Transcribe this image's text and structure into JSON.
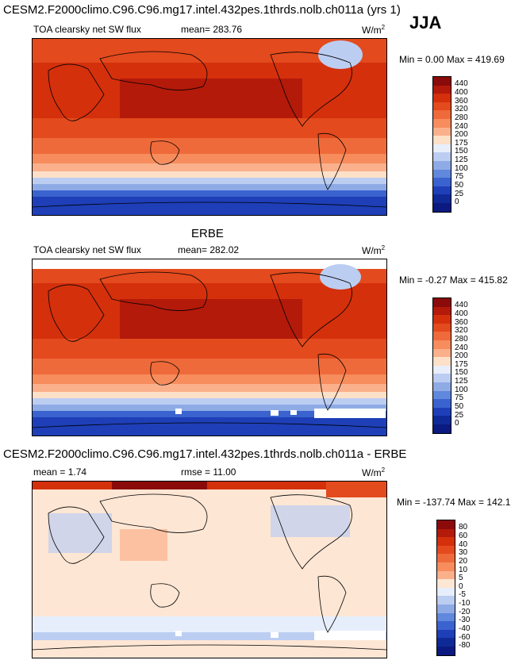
{
  "header": {
    "title": "CESM2.F2000climo.C96.C96.mg17.intel.432pes.1thrds.nolb.ch011a (yrs 1)",
    "season": "JJA"
  },
  "panel1": {
    "variable": "TOA clearsky net SW flux",
    "mean": "mean= 283.76",
    "units": "W/m",
    "units_sup": "2",
    "minmax": "Min =   0.00 Max = 419.69"
  },
  "panel2": {
    "dataset": "ERBE",
    "variable": "TOA clearsky net SW flux",
    "mean": "mean= 282.02",
    "units": "W/m",
    "units_sup": "2",
    "minmax": "Min =  -0.27 Max = 415.82"
  },
  "panel3": {
    "title": "CESM2.F2000climo.C96.C96.mg17.intel.432pes.1thrds.nolb.ch011a - ERBE",
    "mean": "mean =   1.74",
    "rmse": "rmse =  11.00",
    "units": "W/m",
    "units_sup": "2",
    "minmax": "Min = -137.74 Max = 142.12"
  },
  "colorbar_abs": {
    "levels": [
      "440",
      "400",
      "360",
      "320",
      "280",
      "240",
      "200",
      "175",
      "150",
      "125",
      "100",
      "75",
      "50",
      "25",
      "0"
    ],
    "colors": [
      "#8b0a0a",
      "#b31a0a",
      "#d4300c",
      "#e34a1d",
      "#ef6a3a",
      "#f78c5d",
      "#fbb08c",
      "#fde0c8",
      "#e8eefa",
      "#bccdf2",
      "#8fabe6",
      "#6088dc",
      "#3b63cf",
      "#1e3fb8",
      "#0f2a96",
      "#0a1a80"
    ]
  },
  "colorbar_diff": {
    "levels": [
      "80",
      "60",
      "40",
      "30",
      "20",
      "10",
      "5",
      "0",
      "-5",
      "-10",
      "-20",
      "-30",
      "-40",
      "-60",
      "-80"
    ],
    "colors": [
      "#8b0a0a",
      "#b31a0a",
      "#d4300c",
      "#e34a1d",
      "#ef6a3a",
      "#f78c5d",
      "#fbb08c",
      "#fde6d4",
      "#e6eefb",
      "#bccdf2",
      "#8fabe6",
      "#6088dc",
      "#3b63cf",
      "#1e3fb8",
      "#0f2a96",
      "#0a1a80"
    ]
  }
}
